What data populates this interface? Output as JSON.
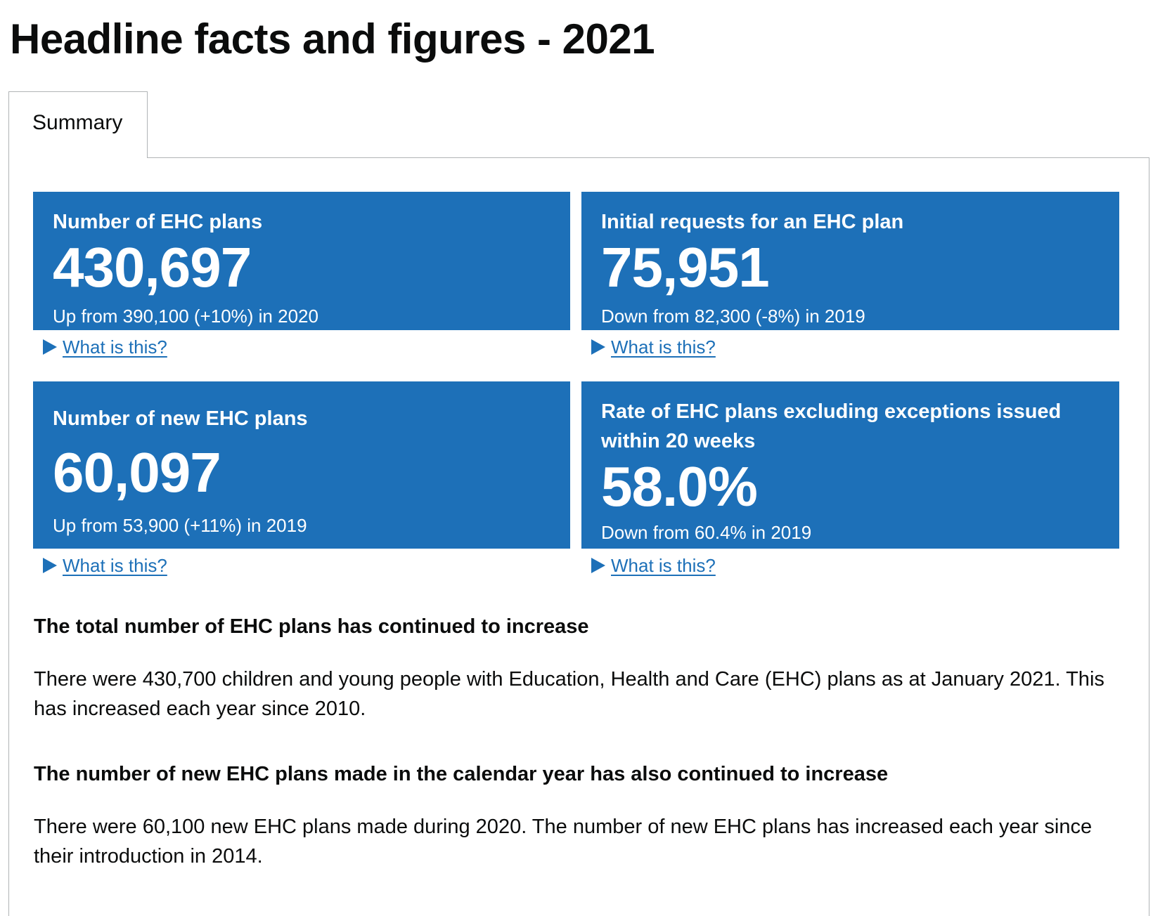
{
  "page_title": "Headline facts and figures - 2021",
  "tabs": [
    {
      "label": "Summary",
      "selected": true
    }
  ],
  "colors": {
    "card_background": "#1d70b8",
    "link": "#1d70b8",
    "text": "#0b0c0c"
  },
  "cards": [
    {
      "title": "Number of EHC plans",
      "value": "430,697",
      "trend": "Up from 390,100 (+10%) in 2020",
      "details_label": "What is this?"
    },
    {
      "title": "Initial requests for an EHC plan",
      "value": "75,951",
      "trend": "Down from 82,300 (-8%) in 2019",
      "details_label": "What is this?"
    },
    {
      "title": "Number of new EHC plans",
      "value": "60,097",
      "trend": "Up from 53,900 (+11%) in 2019",
      "details_label": "What is this?"
    },
    {
      "title": "Rate of EHC plans excluding exceptions issued within 20 weeks",
      "value": "58.0%",
      "trend": "Down from 60.4% in 2019",
      "details_label": "What is this?"
    }
  ],
  "sections": [
    {
      "heading": "The total number of EHC plans has continued to increase",
      "body": "There were 430,700 children and young people with Education, Health and Care (EHC) plans as at January 2021. This has increased each year since 2010."
    },
    {
      "heading": "The number of new EHC plans made in the calendar year has also continued to increase",
      "body": "There were 60,100 new EHC plans made during 2020. The number of new EHC plans has increased each year since their introduction in 2014."
    }
  ]
}
